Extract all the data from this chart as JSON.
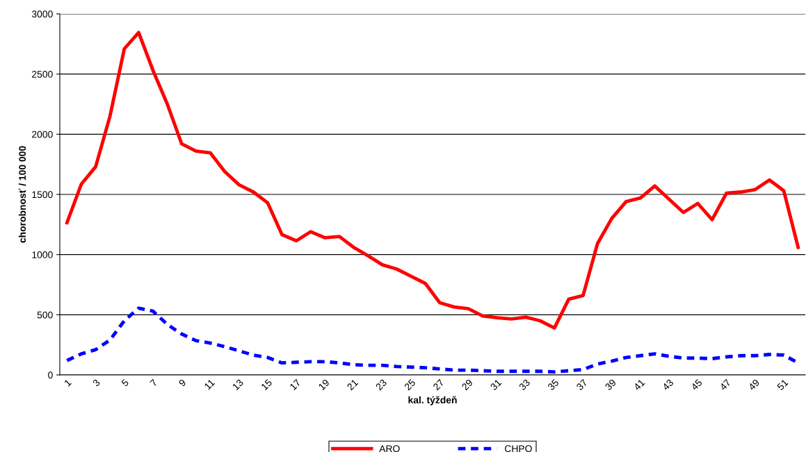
{
  "chart_data": {
    "type": "line",
    "xlabel": "kal. týždeň",
    "ylabel": "chorobnosť / 100 000",
    "categories": [
      "1",
      null,
      "3",
      null,
      "5",
      null,
      "7",
      null,
      "9",
      null,
      "11",
      null,
      "13",
      null,
      "15",
      null,
      "17",
      null,
      "19",
      null,
      "21",
      null,
      "23",
      null,
      "25",
      null,
      "27",
      null,
      "29",
      null,
      "31",
      null,
      "33",
      null,
      "35",
      null,
      "37",
      null,
      "39",
      null,
      "41",
      null,
      "43",
      null,
      "45",
      null,
      "47",
      null,
      "49",
      null,
      "51",
      null
    ],
    "series": [
      {
        "name": "ARO",
        "color": "#ff0000",
        "line_style": "solid",
        "values": [
          1265,
          1585,
          1730,
          2150,
          2710,
          2845,
          2530,
          2250,
          1920,
          1860,
          1845,
          1690,
          1580,
          1520,
          1430,
          1165,
          1115,
          1190,
          1140,
          1150,
          1060,
          990,
          915,
          880,
          820,
          760,
          600,
          565,
          550,
          490,
          475,
          465,
          480,
          450,
          390,
          630,
          660,
          1090,
          1300,
          1440,
          1470,
          1570,
          1460,
          1350,
          1425,
          1290,
          1510,
          1520,
          1540,
          1620,
          1530,
          1060
        ]
      },
      {
        "name": "CHPO",
        "color": "#0000ff",
        "line_style": "dashed",
        "values": [
          120,
          175,
          210,
          290,
          450,
          555,
          530,
          420,
          340,
          285,
          265,
          235,
          200,
          165,
          145,
          100,
          105,
          110,
          110,
          100,
          85,
          80,
          80,
          70,
          65,
          60,
          50,
          40,
          40,
          35,
          30,
          30,
          30,
          30,
          25,
          35,
          45,
          90,
          115,
          145,
          160,
          175,
          155,
          140,
          140,
          135,
          150,
          160,
          160,
          170,
          165,
          100
        ]
      }
    ],
    "ylim": [
      0,
      3000
    ],
    "yticks": [
      0,
      500,
      1000,
      1500,
      2000,
      2500,
      3000
    ],
    "grid": "y",
    "legend": "bottom",
    "marker": "none"
  }
}
